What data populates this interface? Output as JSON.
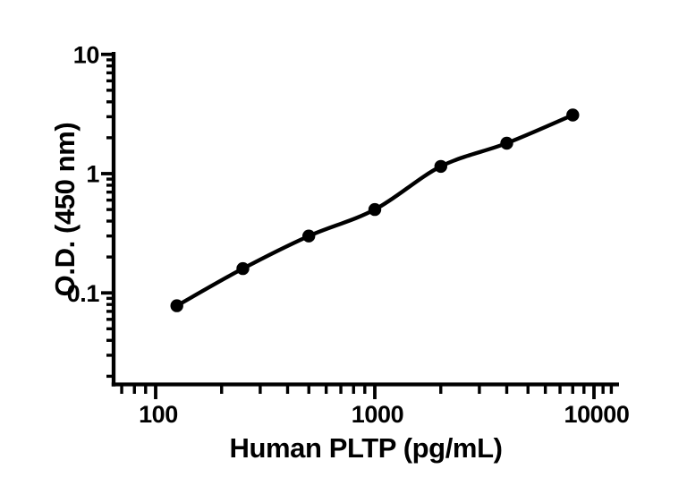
{
  "figure": {
    "background": "#ffffff",
    "ink_color": "#000000"
  },
  "chart_data": {
    "type": "scatter",
    "subtype": "elisa-standard-curve-log-log",
    "title": "",
    "xlabel": "Human PLTP (pg/mL)",
    "ylabel": "O.D. (450 nm)",
    "xscale": "log",
    "yscale": "log",
    "x": [
      125,
      250,
      500,
      1000,
      2000,
      4000,
      8000
    ],
    "y": [
      0.078,
      0.16,
      0.3,
      0.5,
      1.15,
      1.8,
      3.1
    ],
    "series": [
      {
        "marker": "filled-circle",
        "marker_color": "#000000",
        "line": "smooth-fit-curve",
        "line_color": "#000000"
      }
    ],
    "xlim": [
      64,
      13000
    ],
    "ylim": [
      0.0169,
      10
    ],
    "x_major_ticks": [
      100,
      1000,
      10000
    ],
    "x_tick_labels": [
      "100",
      "1000",
      "10000"
    ],
    "y_major_ticks": [
      10,
      1,
      0.1
    ],
    "y_tick_labels": [
      "10",
      "1",
      "0.1"
    ],
    "minor_ticks": "log-decades",
    "grid": "off",
    "legend": "none"
  }
}
